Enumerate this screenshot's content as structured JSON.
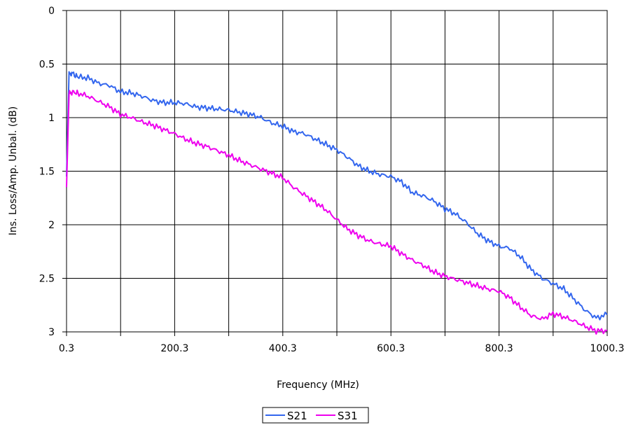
{
  "chart_data": {
    "type": "line",
    "title": "",
    "xlabel": "Frequency (MHz)",
    "ylabel": "Ins. Loss/Amp. Unbal. (dB)",
    "xlim": [
      0.3,
      1000.3
    ],
    "ylim": [
      0,
      3
    ],
    "y_inverted": true,
    "grid": true,
    "legend_position": "bottom-center",
    "x_ticks": [
      0.3,
      100.3,
      200.3,
      300.3,
      400.3,
      500.3,
      600.3,
      700.3,
      800.3,
      900.3,
      1000.3
    ],
    "x_tick_labels": [
      "0.3",
      "",
      "200.3",
      "",
      "400.3",
      "",
      "600.3",
      "",
      "800.3",
      "",
      "1000.3"
    ],
    "y_ticks": [
      0,
      0.5,
      1,
      1.5,
      2,
      2.5,
      3
    ],
    "y_tick_labels": [
      "0",
      "0.5",
      "1",
      "1.5",
      "2",
      "2.5",
      "3"
    ],
    "series": [
      {
        "name": "S21",
        "color": "#3366ee",
        "x": [
          0.3,
          5,
          10,
          20,
          40,
          60,
          80,
          100,
          120,
          140,
          160,
          180,
          200,
          220,
          240,
          260,
          280,
          300,
          320,
          340,
          360,
          380,
          400,
          420,
          440,
          460,
          480,
          500,
          520,
          540,
          560,
          580,
          600,
          620,
          640,
          660,
          680,
          700,
          720,
          740,
          760,
          780,
          800,
          820,
          840,
          860,
          880,
          900,
          920,
          940,
          960,
          980,
          1000
        ],
        "y": [
          1.55,
          0.6,
          0.58,
          0.62,
          0.63,
          0.68,
          0.7,
          0.76,
          0.77,
          0.8,
          0.84,
          0.86,
          0.86,
          0.87,
          0.9,
          0.91,
          0.92,
          0.93,
          0.95,
          0.97,
          1.0,
          1.05,
          1.08,
          1.13,
          1.15,
          1.2,
          1.25,
          1.3,
          1.37,
          1.45,
          1.5,
          1.53,
          1.55,
          1.6,
          1.7,
          1.73,
          1.78,
          1.85,
          1.9,
          1.98,
          2.08,
          2.15,
          2.2,
          2.22,
          2.3,
          2.42,
          2.5,
          2.55,
          2.6,
          2.7,
          2.8,
          2.87,
          2.84
        ]
      },
      {
        "name": "S31",
        "color": "#ee00ee",
        "x": [
          0.3,
          5,
          10,
          20,
          40,
          60,
          80,
          100,
          120,
          140,
          160,
          180,
          200,
          220,
          240,
          260,
          280,
          300,
          320,
          340,
          360,
          380,
          400,
          420,
          440,
          460,
          480,
          500,
          520,
          540,
          560,
          580,
          600,
          620,
          640,
          660,
          680,
          700,
          720,
          740,
          760,
          780,
          800,
          820,
          840,
          860,
          880,
          900,
          920,
          940,
          960,
          980,
          1000
        ],
        "y": [
          1.65,
          0.78,
          0.76,
          0.77,
          0.8,
          0.85,
          0.9,
          0.97,
          1.0,
          1.04,
          1.07,
          1.11,
          1.15,
          1.2,
          1.24,
          1.27,
          1.31,
          1.35,
          1.4,
          1.44,
          1.48,
          1.52,
          1.56,
          1.65,
          1.72,
          1.79,
          1.86,
          1.95,
          2.04,
          2.1,
          2.15,
          2.18,
          2.2,
          2.27,
          2.33,
          2.38,
          2.44,
          2.48,
          2.51,
          2.54,
          2.57,
          2.6,
          2.62,
          2.68,
          2.77,
          2.85,
          2.88,
          2.83,
          2.86,
          2.9,
          2.95,
          2.99,
          2.99
        ]
      }
    ]
  }
}
